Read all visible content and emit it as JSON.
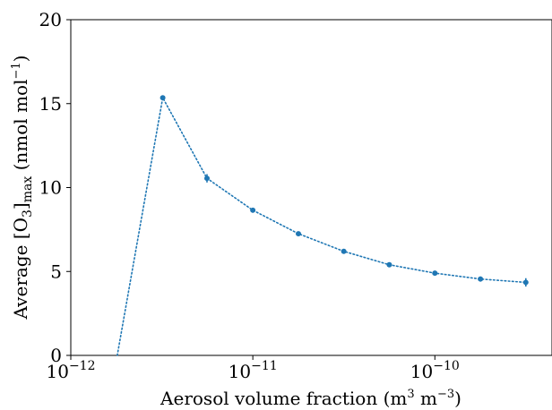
{
  "chart_data": {
    "type": "line",
    "title": "",
    "xlabel": "Aerosol volume fraction (m³ m⁻³)",
    "xlabel_parts": {
      "prefix": "Aerosol volume fraction (m",
      "sup1": "3",
      "mid": " m",
      "sup2": "−3",
      "suffix": ")"
    },
    "ylabel": "Average [O₃]max (nmol mol⁻¹)",
    "ylabel_parts": {
      "prefix": "Average [O",
      "sub1": "3",
      "mid": "]",
      "sub2": "max",
      "rest": " (nmol mol",
      "sup": "−1",
      "suffix": ")"
    },
    "xscale": "log",
    "xlim": [
      1e-12,
      4.4e-10
    ],
    "ylim": [
      0,
      20
    ],
    "grid": false,
    "line_style": "dotted",
    "color": "#1f77b4",
    "x_ticks": [
      {
        "value": 1e-12,
        "base": "10",
        "exp": "−12"
      },
      {
        "value": 1e-11,
        "base": "10",
        "exp": "−11"
      },
      {
        "value": 1e-10,
        "base": "10",
        "exp": "−10"
      }
    ],
    "y_ticks": [
      0,
      5,
      10,
      15,
      20
    ],
    "series": [
      {
        "x": [
          1.8e-12,
          3.2e-12,
          5.6e-12,
          1e-11,
          1.78e-11,
          3.16e-11,
          5.62e-11,
          1e-10,
          1.78e-10,
          3.16e-10
        ],
        "y": [
          0,
          15.35,
          10.55,
          8.65,
          7.25,
          6.2,
          5.4,
          4.9,
          4.55,
          4.35
        ],
        "yerr": [
          0,
          0.1,
          0.25,
          0.1,
          0.1,
          0.1,
          0.1,
          0.1,
          0.15,
          0.25
        ]
      }
    ]
  }
}
